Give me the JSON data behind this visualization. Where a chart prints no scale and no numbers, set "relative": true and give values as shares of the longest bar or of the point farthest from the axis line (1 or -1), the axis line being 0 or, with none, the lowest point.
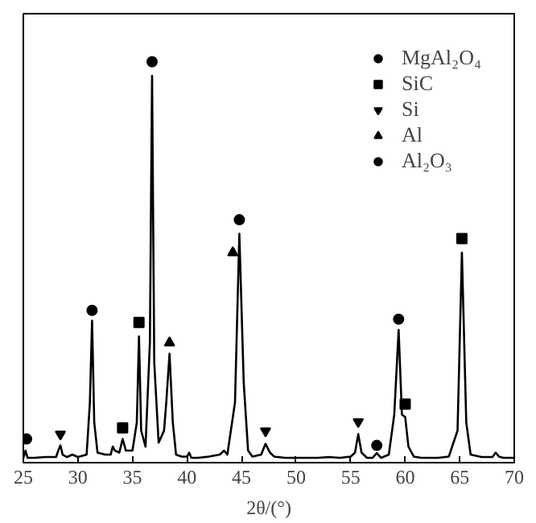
{
  "chart_data": {
    "type": "line",
    "relative": true,
    "xlabel": "2θ/(°)",
    "xlim": [
      25,
      70
    ],
    "xticks": [
      25,
      30,
      35,
      40,
      45,
      50,
      55,
      60,
      65,
      70
    ],
    "tick_labels": "x",
    "grid": false,
    "legend": "top right",
    "series": [
      {
        "color": "#000000",
        "x": [
          25,
          25.2,
          25.3,
          25.4,
          25.6,
          26,
          27,
          28,
          28.2,
          28.4,
          28.6,
          29,
          29.5,
          30,
          30.8,
          31.1,
          31.3,
          31.5,
          31.8,
          32.5,
          33,
          33.2,
          33.4,
          33.8,
          34.1,
          34.4,
          35,
          35.4,
          35.6,
          35.8,
          36.2,
          36.6,
          36.8,
          37,
          37.4,
          37.9,
          38.1,
          38.4,
          38.7,
          39,
          39.5,
          40,
          40.2,
          40.4,
          41,
          42,
          43,
          43.4,
          43.7,
          44.4,
          44.8,
          45.2,
          45.6,
          46,
          46.8,
          47.2,
          47.6,
          48,
          49,
          50,
          51,
          52,
          53,
          54,
          55,
          55.4,
          55.7,
          56,
          56.5,
          57,
          57.4,
          57.8,
          58.5,
          59,
          59.4,
          59.7,
          60,
          60.3,
          60.8,
          61.5,
          62,
          63,
          64,
          64.8,
          65.2,
          65.6,
          66,
          67,
          68,
          68.3,
          68.6,
          69,
          70
        ],
        "values": [
          0.012,
          0.03,
          0.02,
          0.012,
          0.012,
          0.012,
          0.014,
          0.014,
          0.03,
          0.043,
          0.02,
          0.014,
          0.02,
          0.014,
          0.02,
          0.15,
          0.354,
          0.1,
          0.025,
          0.02,
          0.02,
          0.04,
          0.03,
          0.025,
          0.059,
          0.03,
          0.03,
          0.1,
          0.315,
          0.08,
          0.04,
          0.3,
          0.965,
          0.25,
          0.05,
          0.08,
          0.15,
          0.272,
          0.1,
          0.02,
          0.015,
          0.015,
          0.025,
          0.012,
          0.012,
          0.015,
          0.02,
          0.03,
          0.02,
          0.15,
          0.571,
          0.2,
          0.03,
          0.015,
          0.02,
          0.047,
          0.025,
          0.015,
          0.012,
          0.012,
          0.012,
          0.012,
          0.014,
          0.012,
          0.015,
          0.025,
          0.071,
          0.025,
          0.012,
          0.012,
          0.024,
          0.012,
          0.02,
          0.12,
          0.331,
          0.12,
          0.114,
          0.04,
          0.015,
          0.012,
          0.012,
          0.012,
          0.015,
          0.08,
          0.524,
          0.1,
          0.02,
          0.014,
          0.014,
          0.025,
          0.015,
          0.012,
          0.012
        ]
      },
      {
        "type": "scatter",
        "name": "MgAl₂O₄",
        "marker": "circle",
        "color": "#000000",
        "x": [
          31.3,
          36.8,
          44.8,
          59.4
        ],
        "values": [
          0.38,
          1.0,
          0.606,
          0.358
        ]
      },
      {
        "type": "scatter",
        "name": "SiC",
        "marker": "square",
        "color": "#000000",
        "x": [
          34.1,
          35.6,
          60.0,
          65.2
        ],
        "values": [
          0.087,
          0.35,
          0.146,
          0.559
        ]
      },
      {
        "type": "scatter",
        "name": "Si",
        "color": "#000000",
        "x": [
          28.4,
          47.2,
          55.7
        ],
        "values": [
          0.071,
          0.079,
          0.102
        ]
      },
      {
        "type": "scatter",
        "name": "Al",
        "marker": "triangle",
        "color": "#000000",
        "x": [
          38.4,
          44.2
        ],
        "values": [
          0.299,
          0.524
        ]
      },
      {
        "type": "scatter",
        "name": "Al₂O₃",
        "marker": "circle",
        "color": "#000000",
        "x": [
          25.3,
          57.4
        ],
        "values": [
          0.059,
          0.043
        ]
      }
    ]
  }
}
